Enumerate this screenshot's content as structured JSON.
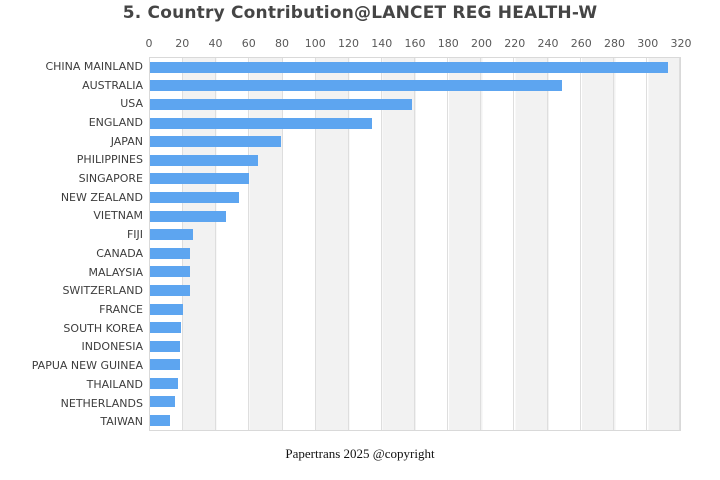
{
  "title": "5. Country Contribution@LANCET REG HEALTH-W",
  "caption": "Papertrans 2025 @copyright",
  "colors": {
    "bar": "#5da5f0",
    "band": "#f2f2f2",
    "gridline": "#dedede",
    "title_text": "#454545",
    "tick_text": "#595959",
    "label_text": "#3d3d3d"
  },
  "chart_data": {
    "type": "bar",
    "orientation": "horizontal",
    "title": "5. Country Contribution@LANCET REG HEALTH-W",
    "xlabel": "",
    "ylabel": "",
    "xlim": [
      0,
      320
    ],
    "x_ticks": [
      0,
      20,
      40,
      60,
      80,
      100,
      120,
      140,
      160,
      180,
      200,
      220,
      240,
      260,
      280,
      300,
      320
    ],
    "grid": true,
    "legend": false,
    "categories": [
      "CHINA MAINLAND",
      "AUSTRALIA",
      "USA",
      "ENGLAND",
      "JAPAN",
      "PHILIPPINES",
      "SINGAPORE",
      "NEW ZEALAND",
      "VIETNAM",
      "FIJI",
      "CANADA",
      "MALAYSIA",
      "SWITZERLAND",
      "FRANCE",
      "SOUTH KOREA",
      "INDONESIA",
      "PAPUA NEW GUINEA",
      "THAILAND",
      "NETHERLANDS",
      "TAIWAN"
    ],
    "values": [
      313,
      249,
      158,
      134,
      79,
      65,
      60,
      54,
      46,
      26,
      24,
      24,
      24,
      20,
      19,
      18,
      18,
      17,
      15,
      12
    ]
  }
}
